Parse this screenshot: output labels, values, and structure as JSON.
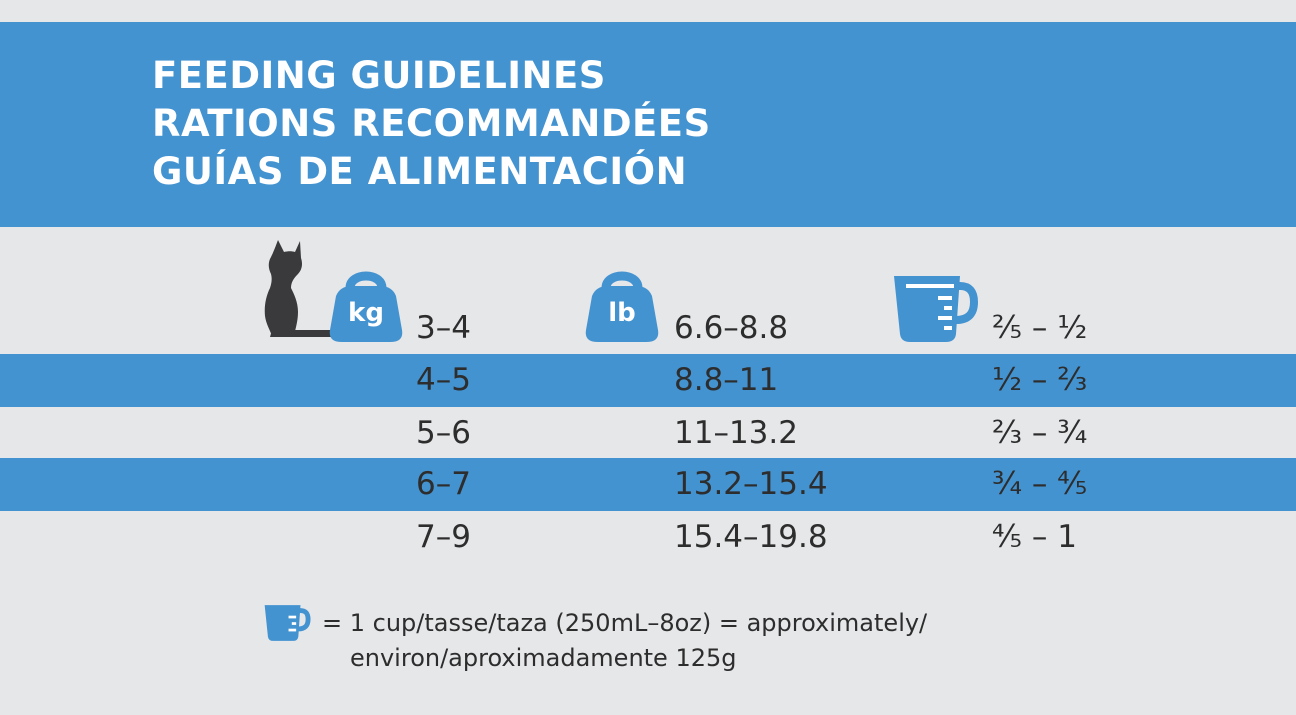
{
  "header": {
    "titles": [
      "FEEDING GUIDELINES",
      "RATIONS RECOMMANDÉES",
      "GUÍAS DE ALIMENTACIÓN"
    ]
  },
  "units": {
    "kg": "kg",
    "lb": "lb"
  },
  "table": {
    "rows": [
      {
        "kg": "3–4",
        "lb": "6.6–8.8",
        "cups": "⅖ – ½",
        "highlighted": false
      },
      {
        "kg": "4–5",
        "lb": "8.8–11",
        "cups": "½ – ⅔",
        "highlighted": true
      },
      {
        "kg": "5–6",
        "lb": "11–13.2",
        "cups": "⅔ – ¾",
        "highlighted": false
      },
      {
        "kg": "6–7",
        "lb": "13.2–15.4",
        "cups": "¾ – ⅘",
        "highlighted": true
      },
      {
        "kg": "7–9",
        "lb": "15.4–19.8",
        "cups": "⅘ – 1",
        "highlighted": false
      }
    ]
  },
  "legend": {
    "line1": "= 1 cup/tasse/taza (250mL–8oz) = approximately/",
    "line2": "environ/aproximadamente 125g"
  },
  "colors": {
    "accent": "#4493d1",
    "background": "#e6e7e9",
    "text": "#2d2d2d",
    "cat": "#3a3a3c"
  },
  "icons": [
    "cat-silhouette-icon",
    "kg-weight-icon",
    "lb-weight-icon",
    "measuring-cup-icon"
  ]
}
